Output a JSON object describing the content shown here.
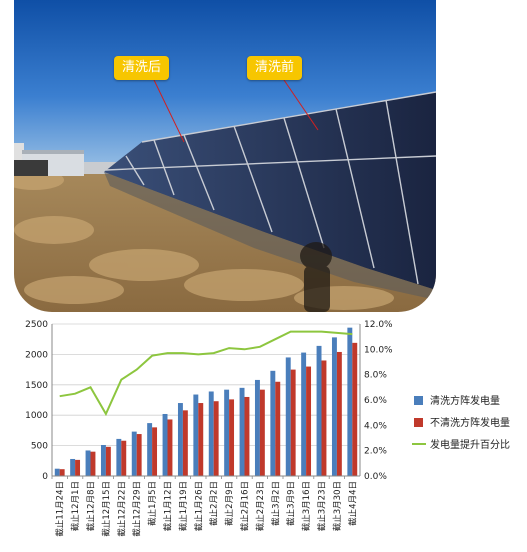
{
  "photo": {
    "callouts": {
      "after": "清洗后",
      "before": "清洗前"
    }
  },
  "colors": {
    "cleaned": "#4a7ebb",
    "uncleaned": "#c0392b",
    "pct": "#8dc63f",
    "callout": "#f7c600"
  },
  "chart_data": {
    "type": "bar",
    "categories": [
      "截止11月24日",
      "截止12月1日",
      "截止12月8日",
      "截止12月15日",
      "截止12月22日",
      "截止12月29日",
      "截止1月5日",
      "截止1月12日",
      "截止1月19日",
      "截止1月26日",
      "截止2月2日",
      "截止2月9日",
      "截止2月16日",
      "截止2月23日",
      "截止3月2日",
      "截止3月9日",
      "截止3月16日",
      "截止3月23日",
      "截止3月30日",
      "截止4月4日"
    ],
    "series": [
      {
        "name": "清洗方阵发电量",
        "axis": "left",
        "kind": "bar",
        "values": [
          120,
          280,
          420,
          510,
          610,
          730,
          870,
          1020,
          1200,
          1340,
          1390,
          1420,
          1450,
          1580,
          1730,
          1950,
          2030,
          2140,
          2280,
          2440
        ]
      },
      {
        "name": "不清洗方阵发电量",
        "axis": "left",
        "kind": "bar",
        "values": [
          112,
          265,
          400,
          480,
          580,
          690,
          800,
          930,
          1080,
          1200,
          1230,
          1260,
          1300,
          1420,
          1550,
          1750,
          1800,
          1900,
          2040,
          2190
        ]
      },
      {
        "name": "发电量提升百分比",
        "axis": "right",
        "kind": "line",
        "values": [
          6.3,
          6.5,
          7.0,
          4.9,
          7.6,
          8.4,
          9.5,
          9.7,
          9.7,
          9.6,
          9.7,
          10.1,
          10.0,
          10.2,
          10.8,
          11.4,
          11.4,
          11.4,
          11.3,
          11.2
        ]
      }
    ],
    "ylim": [
      0,
      2500
    ],
    "yticks": [
      "0",
      "500",
      "1000",
      "1500",
      "2000",
      "2500"
    ],
    "y2lim": [
      0,
      12
    ],
    "y2ticks": [
      "0.0%",
      "2.0%",
      "4.0%",
      "6.0%",
      "8.0%",
      "10.0%",
      "12.0%"
    ],
    "grid": true,
    "legend_position": "right"
  }
}
